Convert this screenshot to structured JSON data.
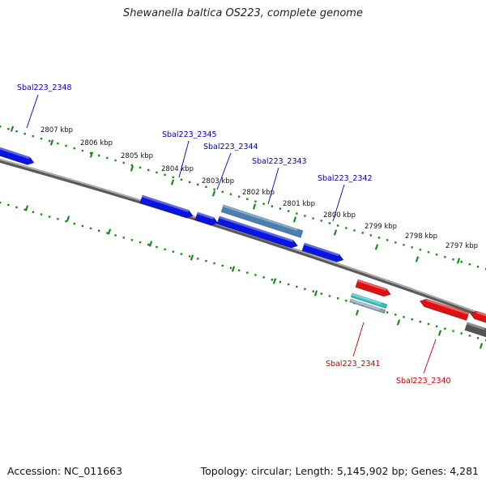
{
  "title": "Shewanella baltica OS223, complete genome",
  "footer": {
    "accession": "Accession: NC_011663",
    "summary": "Topology: circular; Length: 5,145,902 bp; Genes: 4,281"
  },
  "colors": {
    "forward_gene": "#0a14e0",
    "reverse_gene": "#e01010",
    "highlight_gene": "#4a7fb0",
    "rna_gene": "#27c4c4",
    "gray_gene": "#555555",
    "scale_tick": "#1a8a1a",
    "backbone": "#707070",
    "forward_label": "#0000bb",
    "reverse_label": "#cc0000"
  },
  "scale_labels": [
    "2807 kbp",
    "2806 kbp",
    "2805 kbp",
    "2804 kbp",
    "2803 kbp",
    "2802 kbp",
    "2801 kbp",
    "2800 kbp",
    "2799 kbp",
    "2798 kbp",
    "2797 kbp"
  ],
  "gene_labels": {
    "forward": [
      "Sbal223_2348",
      "Sbal223_2345",
      "Sbal223_2344",
      "Sbal223_2343",
      "Sbal223_2342"
    ],
    "reverse": [
      "Sbal223_2341",
      "Sbal223_2340"
    ]
  }
}
